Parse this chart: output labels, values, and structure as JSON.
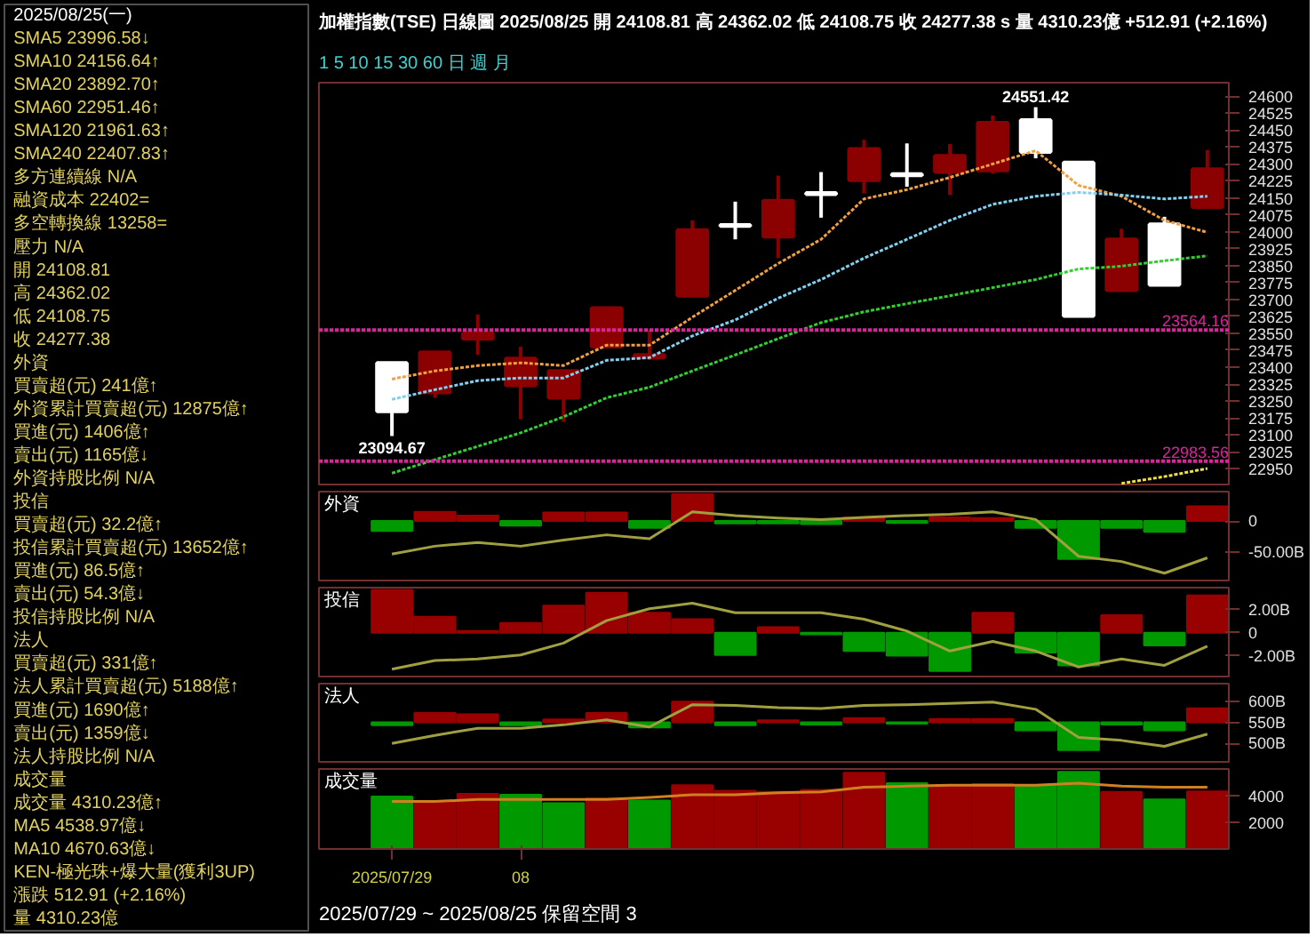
{
  "chart_data": [
    {
      "type": "other",
      "title": "2025/08/25(一)",
      "annotations": [
        "SMA5 23996.58↓",
        "SMA10 24156.64↑",
        "SMA20 23892.70↑",
        "SMA60 22951.46↑",
        "SMA120 21961.63↑",
        "SMA240 22407.83↑",
        "多方連續線 N/A",
        "融資成本 22402=",
        "多空轉換線 13258=",
        "壓力 N/A",
        "開 24108.81",
        "高 24362.02",
        "低 24108.75",
        "收 24277.38",
        "外資",
        "買賣超(元) 241億↑",
        "外資累計買賣超(元) 12875億↑",
        "買進(元) 1406億↑",
        "賣出(元) 1165億↓",
        "外資持股比例 N/A",
        "投信",
        "買賣超(元) 32.2億↑",
        "投信累計買賣超(元) 13652億↑",
        "買進(元) 86.5億↑",
        "賣出(元) 54.3億↓",
        "投信持股比例 N/A",
        "法人",
        "買賣超(元) 331億↑",
        "法人累計買賣超(元) 5188億↑",
        "買進(元) 1690億↑",
        "賣出(元) 1359億↓",
        "法人持股比例 N/A",
        "成交量",
        "成交量 4310.23億↑",
        "MA5 4538.97億↓",
        "MA10 4670.63億↓",
        "KEN-極光珠+爆大量(獲利3UP)",
        "漲跌 512.91 (+2.16%)",
        "量 4310.23億"
      ]
    },
    {
      "type": "candlestick",
      "title": "加權指數(TSE)  日線圖  2025/08/25 開 24108.81 高 24362.02 低 24108.75 收 24277.38 s 量 4310.23億 +512.91 (+2.16%)",
      "subtitle": "1  5  10  15  30  60  日  週  月",
      "categories": [
        null,
        null,
        null,
        null,
        null,
        null,
        null,
        null,
        null,
        null,
        null,
        null,
        null,
        null,
        null,
        null,
        null,
        null,
        null,
        null
      ],
      "tick_labels": "y",
      "ohlc": [
        [
          23419,
          23424,
          23094.67,
          23204
        ],
        [
          23288,
          23466,
          23264,
          23466
        ],
        [
          23526,
          23633,
          23454,
          23550
        ],
        [
          23319,
          23490,
          23169,
          23438
        ],
        [
          23264,
          23383,
          23157,
          23383
        ],
        [
          23490,
          23666,
          23490,
          23662
        ],
        [
          23442,
          23562,
          23431,
          23454
        ],
        [
          23716,
          24050,
          23716,
          24007
        ],
        [
          24030,
          24133,
          23966,
          24025
        ],
        [
          23978,
          24248,
          23883,
          24137
        ],
        [
          24172,
          24264,
          24062,
          24166
        ],
        [
          24228,
          24407,
          24169,
          24367
        ],
        [
          24255,
          24391,
          24199,
          24249
        ],
        [
          24264,
          24388,
          24162,
          24336
        ],
        [
          24271,
          24515,
          24257,
          24483
        ],
        [
          24495,
          24551.42,
          24325,
          24353
        ],
        [
          24307,
          24307,
          23620,
          23626
        ],
        [
          23740,
          24013,
          23740,
          23966
        ],
        [
          24033,
          24066,
          23764,
          23764
        ],
        [
          24108.81,
          24362.02,
          24108.75,
          24277.38
        ]
      ],
      "colors": [
        "#ffffff",
        "#8b0000",
        "#8b0000",
        "#8b0000",
        "#8b0000",
        "#8b0000",
        "#8b0000",
        "#8b0000",
        "#ffffff",
        "#8b0000",
        "#ffffff",
        "#8b0000",
        "#ffffff",
        "#8b0000",
        "#8b0000",
        "#ffffff",
        "#ffffff",
        "#8b0000",
        "#ffffff",
        "#8b0000"
      ],
      "series": [
        {
          "type": "line",
          "color": "#f0a040",
          "values": [
            23347,
            23383,
            23407,
            23419,
            23407,
            23497,
            23497,
            23621,
            23740,
            23859,
            23966,
            24145,
            24186,
            24240,
            24300,
            24359,
            24205,
            24157,
            24050,
            23997
          ]
        },
        {
          "type": "line",
          "color": "#80d0f0",
          "values": [
            23257,
            23300,
            23340,
            23352,
            23352,
            23430,
            23442,
            23538,
            23609,
            23705,
            23788,
            23883,
            23966,
            24050,
            24121,
            24157,
            24174,
            24162,
            24145,
            24157
          ]
        },
        {
          "type": "line",
          "color": "#30d030",
          "values": [
            22930,
            22990,
            23049,
            23109,
            23180,
            23264,
            23311,
            23383,
            23454,
            23526,
            23597,
            23645,
            23681,
            23716,
            23752,
            23788,
            23835,
            23847,
            23871,
            23893
          ]
        },
        {
          "type": "line",
          "color": "#f0e040",
          "values": [
            null,
            null,
            null,
            null,
            null,
            null,
            null,
            null,
            null,
            null,
            null,
            null,
            null,
            null,
            null,
            null,
            null,
            22885,
            22915,
            22951
          ]
        }
      ],
      "line_style": "dotted",
      "ylim": [
        22880,
        24660
      ],
      "yticks": [
        22950,
        23025,
        23100,
        23175,
        23250,
        23325,
        23400,
        23475,
        23550,
        23625,
        23700,
        23775,
        23850,
        23925,
        24000,
        24075,
        24150,
        24225,
        24300,
        24375,
        24450,
        24525,
        24600
      ],
      "ref_lines": [
        {
          "axis": "y",
          "value": 23564.16,
          "label": "23564.16",
          "color": "#e020a0",
          "line_style": "dotted"
        },
        {
          "axis": "y",
          "value": 22983.56,
          "label": "22983.56",
          "color": "#e020a0",
          "line_style": "dotted"
        }
      ],
      "annotations": [
        {
          "text": "24551.42",
          "y": 24551.42
        },
        {
          "text": "23094.67",
          "y": 23094.67
        }
      ]
    },
    {
      "type": "bar",
      "title": "外資",
      "categories": [
        null,
        null,
        null,
        null,
        null,
        null,
        null,
        null,
        null,
        null,
        null,
        null,
        null,
        null,
        null,
        null,
        null,
        null,
        null,
        null
      ],
      "tick_labels": "y",
      "ylim": [
        -97,
        48
      ],
      "yticks": [
        0,
        {
          "value": -50,
          "label": "-50.00B"
        }
      ],
      "series": [
        {
          "type": "bar",
          "values": [
            -16,
            15,
            9,
            -7.5,
            14,
            14,
            -11,
            44,
            -4,
            -4,
            -5,
            6,
            -3,
            6,
            5,
            -11,
            -62,
            -11,
            -17.5,
            24.1
          ],
          "colors": [
            "#009900",
            "#990000",
            "#990000",
            "#009900",
            "#990000",
            "#990000",
            "#009900",
            "#990000",
            "#009900",
            "#009900",
            "#009900",
            "#990000",
            "#009900",
            "#990000",
            "#990000",
            "#009900",
            "#009900",
            "#009900",
            "#009900",
            "#990000"
          ]
        },
        {
          "type": "line",
          "color": "#a0a040",
          "values": [
            -54,
            -41,
            -35,
            -41,
            -31,
            -22.5,
            -29,
            15,
            9,
            5,
            2.5,
            6,
            9,
            11,
            15,
            2.5,
            -57.5,
            -66,
            -85,
            -60
          ]
        }
      ]
    },
    {
      "type": "bar",
      "title": "投信",
      "categories": [
        null,
        null,
        null,
        null,
        null,
        null,
        null,
        null,
        null,
        null,
        null,
        null,
        null,
        null,
        null,
        null,
        null,
        null,
        null,
        null
      ],
      "tick_labels": "y",
      "ylim": [
        -3.8,
        3.9
      ],
      "yticks": [
        {
          "value": 2,
          "label": "2.00B"
        },
        0,
        {
          "value": -2,
          "label": "-2.00B"
        }
      ],
      "series": [
        {
          "type": "bar",
          "values": [
            3.7,
            1.38,
            0.14,
            0.83,
            2.35,
            3.45,
            1.72,
            1.17,
            -1.93,
            0.48,
            -0.14,
            -1.59,
            -2.0,
            -3.31,
            1.72,
            -1.72,
            -2.83,
            1.52,
            -1.1,
            3.22
          ],
          "colors": [
            "#990000",
            "#990000",
            "#990000",
            "#990000",
            "#990000",
            "#990000",
            "#990000",
            "#990000",
            "#009900",
            "#990000",
            "#009900",
            "#009900",
            "#009900",
            "#009900",
            "#990000",
            "#009900",
            "#009900",
            "#990000",
            "#009900",
            "#990000"
          ]
        },
        {
          "type": "line",
          "color": "#a0a040",
          "values": [
            -3.17,
            -2.42,
            -2.28,
            -1.93,
            -0.9,
            1.04,
            2.07,
            2.55,
            1.73,
            1.73,
            1.73,
            1.17,
            0.14,
            -1.59,
            -0.76,
            -1.59,
            -2.97,
            -2.28,
            -2.83,
            -1.17
          ]
        }
      ]
    },
    {
      "type": "bar",
      "title": "法人",
      "categories": [
        null,
        null,
        null,
        null,
        null,
        null,
        null,
        null,
        null,
        null,
        null,
        null,
        null,
        null,
        null,
        null,
        null,
        null,
        null,
        null
      ],
      "tick_labels": "y",
      "ylim": [
        456,
        642
      ],
      "yticks": [
        {
          "value": 600,
          "label": "600B"
        },
        {
          "value": 550,
          "label": "550B"
        },
        {
          "value": 500,
          "label": "500B"
        }
      ],
      "series": [
        {
          "type": "bar",
          "base": [
            550,
            550,
            550,
            550,
            550,
            550,
            550,
            550,
            550,
            550,
            550,
            550,
            550,
            550,
            550,
            550,
            550,
            550,
            550,
            550
          ],
          "values": [
            -7,
            22,
            19,
            -7,
            7,
            22,
            -12,
            49,
            -7,
            5,
            -5,
            10,
            -3,
            8,
            8,
            -19,
            -66,
            -5,
            -19,
            33.1
          ],
          "colors": [
            "#009900",
            "#990000",
            "#990000",
            "#009900",
            "#990000",
            "#990000",
            "#009900",
            "#990000",
            "#009900",
            "#990000",
            "#009900",
            "#990000",
            "#009900",
            "#990000",
            "#990000",
            "#009900",
            "#009900",
            "#009900",
            "#009900",
            "#990000"
          ]
        },
        {
          "type": "line",
          "color": "#a0a040",
          "values": [
            500,
            519,
            536,
            536,
            544,
            556,
            539,
            592,
            590,
            585,
            583,
            590,
            592,
            595,
            598,
            581,
            514,
            507,
            493,
            522
          ]
        }
      ]
    },
    {
      "type": "bar",
      "title": "成交量",
      "categories": [
        "2025/07/29",
        null,
        null,
        "08",
        null,
        null,
        null,
        null,
        null,
        null,
        null,
        null,
        null,
        null,
        null,
        null,
        null,
        null,
        null,
        null
      ],
      "ylim": [
        0,
        6000
      ],
      "yticks": [
        4000,
        2000
      ],
      "annotations": [
        "2025/07/29  ~  2025/08/25    保留空間  3"
      ],
      "series": [
        {
          "type": "bar",
          "values": [
            3930,
            3500,
            4140,
            4070,
            3430,
            3790,
            3640,
            4780,
            4360,
            4280,
            4430,
            5710,
            4930,
            4710,
            4860,
            4780,
            5780,
            4280,
            3710,
            4310.23
          ],
          "colors": [
            "#009900",
            "#990000",
            "#990000",
            "#009900",
            "#009900",
            "#990000",
            "#009900",
            "#990000",
            "#990000",
            "#990000",
            "#990000",
            "#990000",
            "#009900",
            "#990000",
            "#990000",
            "#009900",
            "#009900",
            "#990000",
            "#009900",
            "#990000"
          ]
        },
        {
          "type": "line",
          "color": "#d08020",
          "values": [
            3570,
            3570,
            3710,
            3710,
            3710,
            3710,
            3860,
            4070,
            4070,
            4210,
            4280,
            4640,
            4710,
            4780,
            4780,
            4780,
            4930,
            4710,
            4640,
            4640
          ]
        }
      ]
    }
  ]
}
